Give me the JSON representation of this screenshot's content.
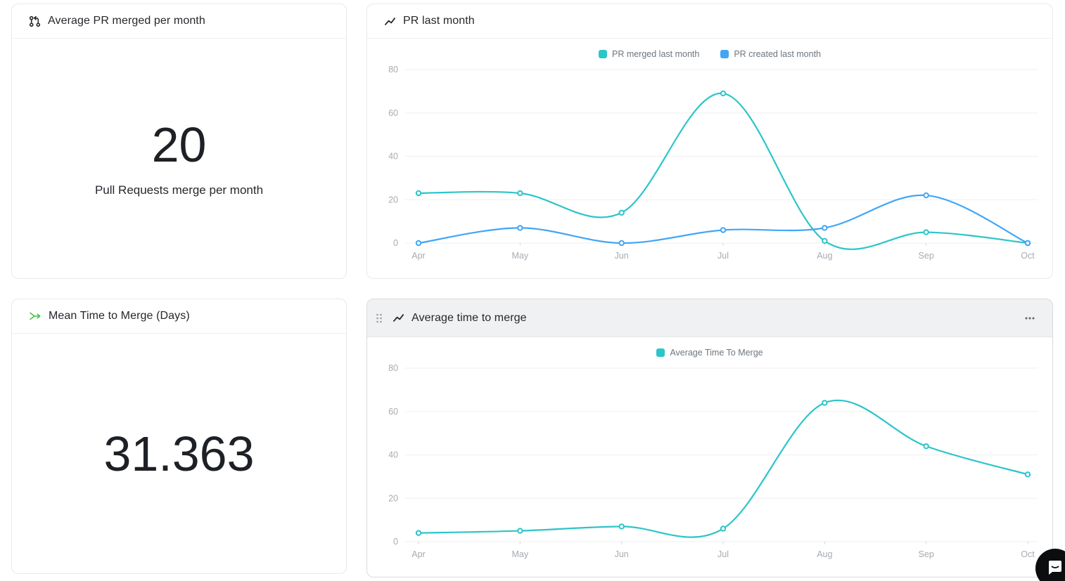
{
  "cards": {
    "avg_pr_merged": {
      "title": "Average PR merged per month",
      "value": "20",
      "label": "Pull Requests merge per month"
    },
    "pr_last_month": {
      "title": "PR last month"
    },
    "mean_time_to_merge": {
      "title": "Mean Time to Merge (Days)",
      "value": "31.363"
    },
    "average_time_to_merge": {
      "title": "Average time to merge"
    }
  },
  "colors": {
    "teal": "#2cc5c9",
    "blue": "#41a6f6",
    "green": "#45c24b",
    "grid": "#efefef",
    "axis_text": "#a6abb2",
    "tick": "#d6d9dc",
    "legend_text": "#6e767e"
  },
  "chart_data": [
    {
      "id": "pr-last-month-chart",
      "type": "line",
      "title": "PR last month",
      "x": [
        "Apr",
        "May",
        "Jun",
        "Jul",
        "Aug",
        "Sep",
        "Oct"
      ],
      "series": [
        {
          "name": "PR merged last month",
          "color": "#2cc5c9",
          "values": [
            23,
            23,
            14,
            69,
            1,
            5,
            0
          ]
        },
        {
          "name": "PR created last month",
          "color": "#41a6f6",
          "values": [
            0,
            7,
            0,
            6,
            7,
            22,
            0
          ]
        }
      ],
      "ylim": [
        0,
        80
      ],
      "yticks": [
        0,
        20,
        40,
        60,
        80
      ],
      "grid": true,
      "legend_position": "top"
    },
    {
      "id": "avg-time-chart",
      "type": "line",
      "title": "Average time to merge",
      "x": [
        "Apr",
        "May",
        "Jun",
        "Jul",
        "Aug",
        "Sep",
        "Oct"
      ],
      "series": [
        {
          "name": "Average Time To Merge",
          "color": "#2cc5c9",
          "values": [
            4,
            5,
            7,
            6,
            64,
            44,
            31
          ]
        }
      ],
      "ylim": [
        0,
        80
      ],
      "yticks": [
        0,
        20,
        40,
        60,
        80
      ],
      "grid": true,
      "legend_position": "top"
    }
  ]
}
